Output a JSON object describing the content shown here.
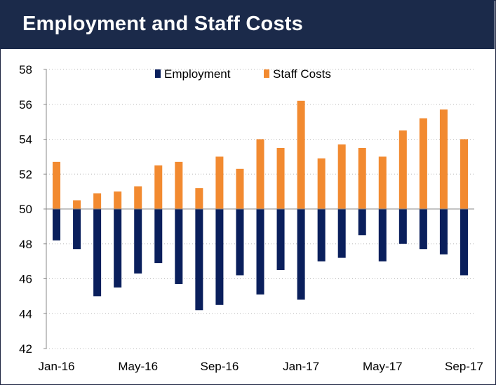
{
  "chart_data": {
    "type": "bar",
    "title": "Employment and Staff Costs",
    "baseline": 50,
    "ylim": [
      42,
      58
    ],
    "yticks": [
      42,
      44,
      46,
      48,
      50,
      52,
      54,
      56,
      58
    ],
    "categories": [
      "Jan-16",
      "Feb-16",
      "Mar-16",
      "Apr-16",
      "May-16",
      "Jun-16",
      "Jul-16",
      "Aug-16",
      "Sep-16",
      "Oct-16",
      "Nov-16",
      "Dec-16",
      "Jan-17",
      "Feb-17",
      "Mar-17",
      "Apr-17",
      "May-17",
      "Jun-17",
      "Jul-17",
      "Aug-17",
      "Sep-17"
    ],
    "xtick_labels": [
      "Jan-16",
      "May-16",
      "Sep-16",
      "Jan-17",
      "May-17",
      "Sep-17"
    ],
    "xtick_indices": [
      0,
      4,
      8,
      12,
      16,
      20
    ],
    "series": [
      {
        "name": "Employment",
        "color": "#0a1f5c",
        "values": [
          48.2,
          47.7,
          45.0,
          45.5,
          46.3,
          46.9,
          45.7,
          44.2,
          44.5,
          46.2,
          45.1,
          46.5,
          44.8,
          47.0,
          47.2,
          48.5,
          47.0,
          48.0,
          47.7,
          47.4,
          46.2
        ]
      },
      {
        "name": "Staff Costs",
        "color": "#f28a30",
        "values": [
          52.7,
          50.5,
          50.9,
          51.0,
          51.3,
          52.5,
          52.7,
          51.2,
          53.0,
          52.3,
          54.0,
          53.5,
          56.2,
          52.9,
          53.7,
          53.5,
          53.0,
          54.5,
          55.2,
          55.7,
          54.0
        ]
      }
    ],
    "legend_position": "top-center",
    "grid": true
  }
}
